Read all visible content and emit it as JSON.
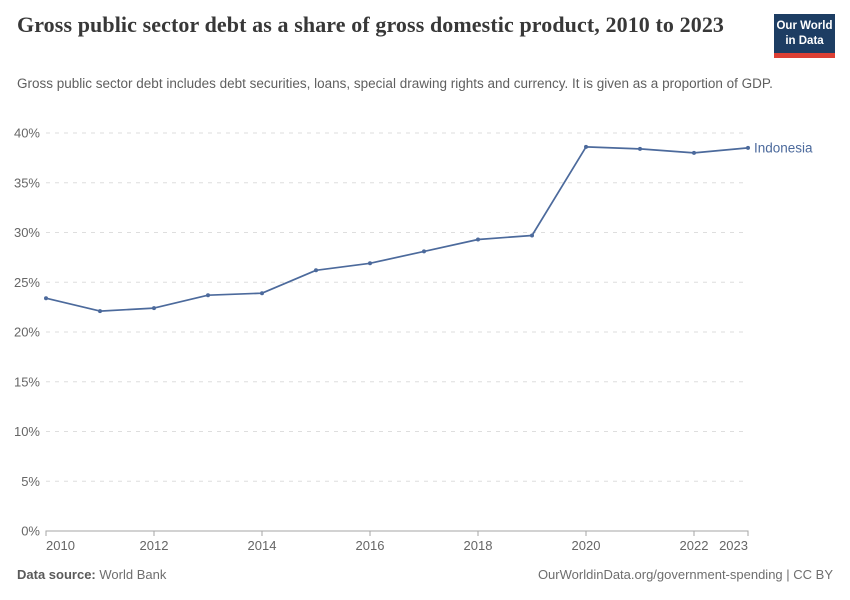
{
  "header": {
    "title": "Gross public sector debt as a share of gross domestic product, 2010 to 2023",
    "subtitle": "Gross public sector debt includes debt securities, loans, special drawing rights and currency. It is given as a proportion of GDP."
  },
  "logo": {
    "line1": "Our World",
    "line2": "in Data",
    "bg_color": "#1d3d63",
    "bar_color": "#dc3f34"
  },
  "chart_data": {
    "type": "line",
    "title": "Gross public sector debt as a share of gross domestic product, 2010 to 2023",
    "x": [
      2010,
      2011,
      2012,
      2013,
      2014,
      2015,
      2016,
      2017,
      2018,
      2019,
      2020,
      2021,
      2022,
      2023
    ],
    "series": [
      {
        "name": "Indonesia",
        "color": "#4C6A9C",
        "values": [
          23.4,
          22.1,
          22.4,
          23.7,
          23.9,
          26.2,
          26.9,
          28.1,
          29.3,
          29.7,
          38.6,
          38.4,
          38.0,
          38.5
        ]
      }
    ],
    "xlabel": "",
    "ylabel": "",
    "ylim": [
      0,
      40
    ],
    "yticks": [
      0,
      5,
      10,
      15,
      20,
      25,
      30,
      35,
      40
    ],
    "ytick_suffix": "%",
    "xticks": [
      2010,
      2012,
      2014,
      2016,
      2018,
      2020,
      2022,
      2023
    ],
    "grid": "horizontal dashed",
    "grid_color": "#dedede",
    "axis_color": "#a5a5a5",
    "legend": "line-end label"
  },
  "footer": {
    "datasource_label": "Data source:",
    "datasource_value": "World Bank",
    "attribution": "OurWorldinData.org/government-spending | CC BY"
  }
}
